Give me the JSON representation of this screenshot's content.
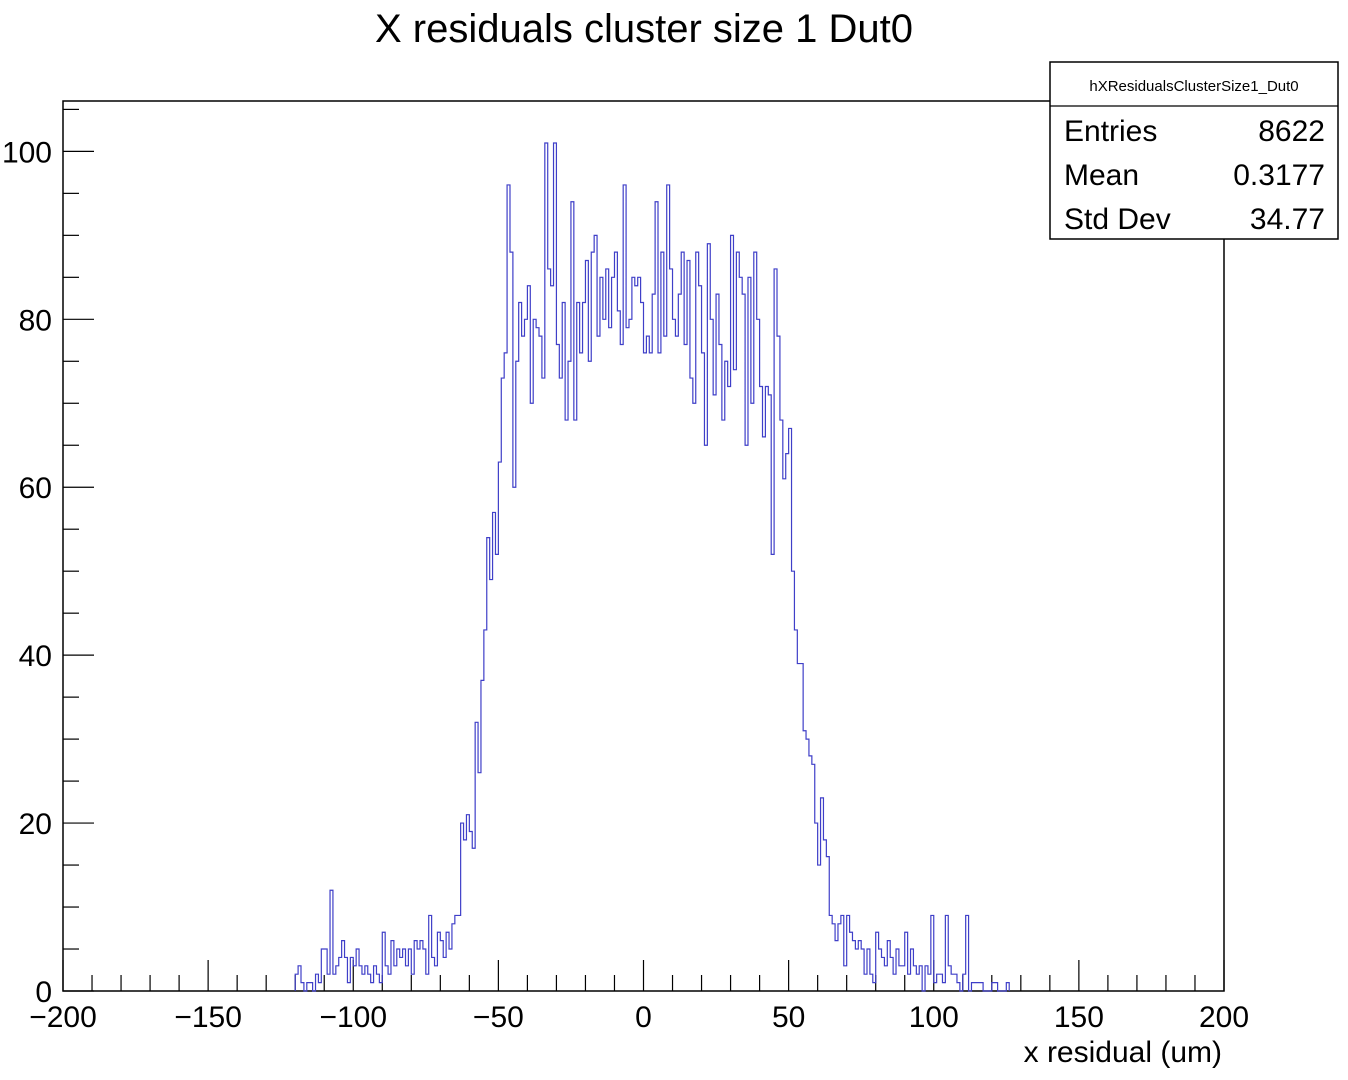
{
  "chart_data": {
    "type": "histogram",
    "title": "X residuals cluster size 1 Dut0",
    "xlabel": "x residual (um)",
    "ylabel": "",
    "xlim": [
      -200,
      200
    ],
    "ylim": [
      0,
      106
    ],
    "x_ticks": [
      -200,
      -150,
      -100,
      -50,
      0,
      50,
      100,
      150,
      200
    ],
    "x_tick_labels": [
      "−200",
      "−150",
      "−100",
      "−50",
      "0",
      "50",
      "100",
      "150",
      "200"
    ],
    "y_ticks": [
      0,
      20,
      40,
      60,
      80,
      100
    ],
    "y_tick_labels": [
      "0",
      "20",
      "40",
      "60",
      "80",
      "100"
    ],
    "line_color": "#3f3fc8",
    "stats_box": {
      "name": "hXResidualsClusterSize1_Dut0",
      "rows": [
        {
          "label": "Entries",
          "value": "8622"
        },
        {
          "label": "Mean",
          "value": "0.3177"
        },
        {
          "label": "Std Dev",
          "value": "34.77"
        }
      ]
    },
    "series": [
      {
        "bin_width": 1,
        "x_start": -120,
        "values": [
          2,
          3,
          1,
          0,
          1,
          1,
          0,
          2,
          1,
          5,
          5,
          2,
          12,
          2,
          3,
          4,
          6,
          4,
          1,
          4,
          3,
          5,
          3,
          2,
          3,
          2,
          1,
          3,
          2,
          1,
          7,
          3,
          2,
          6,
          3,
          5,
          4,
          5,
          3,
          5,
          2,
          6,
          5,
          6,
          5,
          2,
          9,
          4,
          3,
          7,
          6,
          4,
          7,
          5,
          8,
          9,
          9,
          20,
          18,
          21,
          19,
          17,
          32,
          26,
          37,
          43,
          54,
          49,
          57,
          52,
          63,
          73,
          76,
          96,
          88,
          60,
          75,
          82,
          78,
          80,
          84,
          70,
          80,
          79,
          78,
          73,
          101,
          86,
          84,
          101,
          77,
          73,
          82,
          68,
          75,
          94,
          68,
          82,
          76,
          82,
          87,
          75,
          88,
          90,
          78,
          85,
          80,
          86,
          79,
          85,
          88,
          81,
          77,
          96,
          79,
          80,
          85,
          84,
          85,
          82,
          76,
          78,
          76,
          83,
          94,
          76,
          88,
          78,
          96,
          86,
          80,
          78,
          83,
          88,
          77,
          87,
          73,
          70,
          88,
          84,
          76,
          65,
          89,
          80,
          71,
          83,
          77,
          68,
          75,
          72,
          90,
          74,
          88,
          85,
          83,
          65,
          85,
          70,
          88,
          80,
          72,
          66,
          72,
          71,
          52,
          86,
          78,
          68,
          61,
          64,
          67,
          50,
          43,
          39,
          39,
          31,
          30,
          28,
          27,
          20,
          15,
          23,
          18,
          16,
          9,
          8,
          6,
          8,
          9,
          3,
          9,
          7,
          6,
          5,
          6,
          5,
          2,
          5,
          2,
          1,
          7,
          5,
          4,
          3,
          6,
          4,
          2,
          5,
          3,
          3,
          7,
          2,
          5,
          3,
          2,
          3,
          0,
          3,
          2,
          9,
          1,
          2,
          2,
          1,
          9,
          3,
          2,
          2,
          1,
          0,
          2,
          9,
          0,
          1,
          1,
          1,
          1,
          0,
          0,
          0,
          1,
          1,
          0,
          0,
          0,
          1
        ]
      }
    ]
  }
}
